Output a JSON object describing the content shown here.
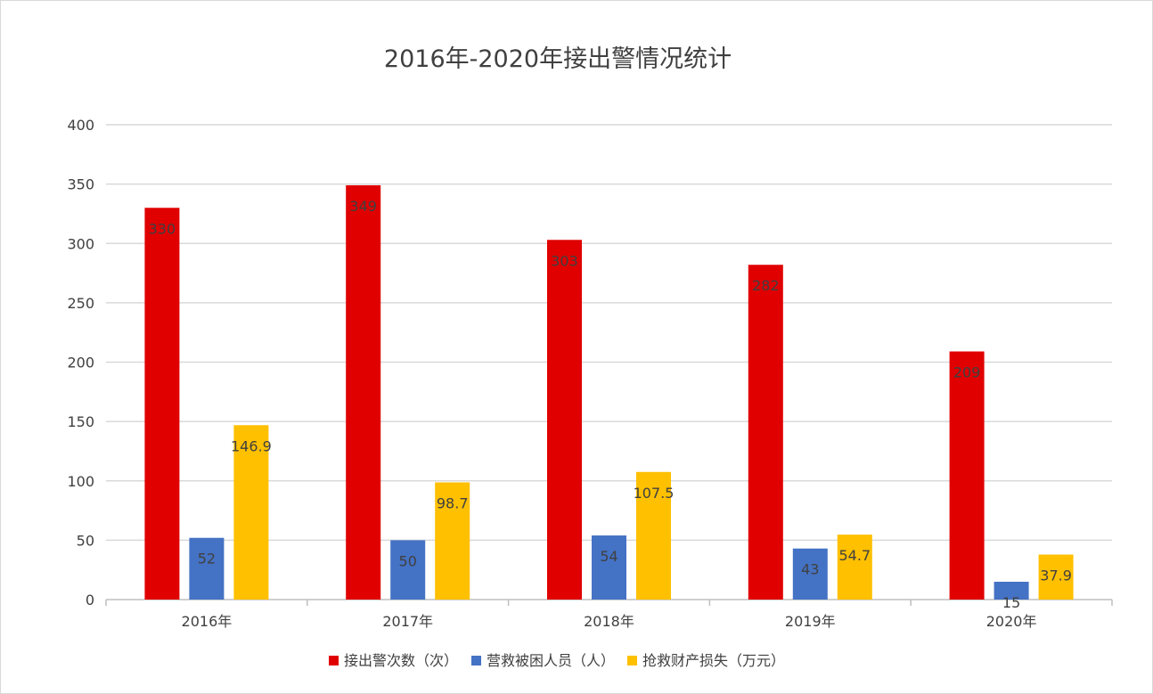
{
  "chart_data": {
    "type": "bar",
    "title": "2016年-2020年接出警情况统计",
    "categories": [
      "2016年",
      "2017年",
      "2018年",
      "2019年",
      "2020年"
    ],
    "series": [
      {
        "name": "接出警次数（次）",
        "color": "#e00000",
        "values": [
          330,
          349,
          303,
          282,
          209
        ]
      },
      {
        "name": "营救被困人员（人）",
        "color": "#4472c4",
        "values": [
          52,
          50,
          54,
          43,
          15
        ]
      },
      {
        "name": "抢救财产损失（万元）",
        "color": "#ffc000",
        "values": [
          146.9,
          98.7,
          107.5,
          54.7,
          37.9
        ]
      }
    ],
    "ylim": [
      0,
      400
    ],
    "yticks": [
      0,
      50,
      100,
      150,
      200,
      250,
      300,
      350,
      400
    ],
    "grid": true,
    "legend_position": "bottom",
    "data_labels": "inside-end"
  }
}
